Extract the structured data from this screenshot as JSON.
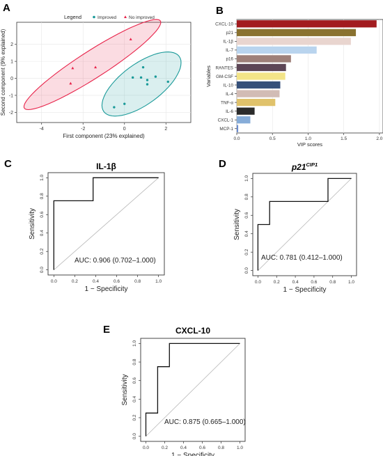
{
  "panel_labels": {
    "a": "A",
    "b": "B",
    "c": "C",
    "d": "D",
    "e": "E"
  },
  "chart_data": [
    {
      "panel": "A",
      "type": "scatter",
      "xlabel": "First component (23% explained)",
      "ylabel": "Second component (9% explained)",
      "xlim": [
        -5.2,
        3.2
      ],
      "ylim": [
        -2.6,
        3.3
      ],
      "xticks": [
        -4,
        -2,
        0,
        2
      ],
      "yticks": [
        -2,
        -1,
        0,
        1,
        2
      ],
      "legend": {
        "title": "Legend",
        "position": "top"
      },
      "series": [
        {
          "name": "Improved",
          "color": "#1a9a99",
          "marker": "circle",
          "x": [
            -0.5,
            0,
            0.4,
            0.8,
            1.1,
            1.1,
            1.5,
            2.1,
            0.9
          ],
          "y": [
            -1.7,
            -1.5,
            0.05,
            0.05,
            -0.1,
            -0.35,
            0.1,
            -0.2,
            0.65
          ]
        },
        {
          "name": "No improved",
          "color": "#e8234a",
          "marker": "triangle",
          "x": [
            -2.6,
            -2.5,
            -1.4,
            0.3
          ],
          "y": [
            -0.3,
            0.6,
            0.65,
            2.3
          ]
        }
      ],
      "ellipse_colors": {
        "Improved": "#1a9a99",
        "No improved": "#e8234a"
      }
    },
    {
      "panel": "B",
      "type": "bar",
      "orientation": "horizontal",
      "xlabel": "VIP scores",
      "ylabel": "Variables",
      "xlim": [
        0,
        2.05
      ],
      "xticks": [
        "0.0",
        "0.5",
        "1.0",
        "1.5",
        "2.0"
      ],
      "categories": [
        "CXCL-10",
        "p21",
        "IL-1β",
        "IL-7",
        "p16",
        "RANTES",
        "GM-CSF",
        "IL-10",
        "IL-4",
        "TNF-α",
        "IL-6",
        "CXCL-1",
        "MCP-1"
      ],
      "values": [
        1.96,
        1.67,
        1.6,
        1.12,
        0.76,
        0.69,
        0.68,
        0.61,
        0.6,
        0.54,
        0.25,
        0.19,
        0.02
      ],
      "colors": [
        "#a21b1f",
        "#8a7230",
        "#e9d5cf",
        "#b9d4ee",
        "#9e8079",
        "#5d4656",
        "#f3e488",
        "#35507a",
        "#d2bcb5",
        "#e0c26b",
        "#2b2b2b",
        "#86acd8",
        "#6a8ccf"
      ]
    },
    {
      "panel": "C",
      "type": "line",
      "title": "IL-1β",
      "title_sup": "",
      "xlabel": "1 − Specificity",
      "ylabel": "Sensitivity",
      "xlim": [
        0,
        1
      ],
      "ylim": [
        0,
        1
      ],
      "xticks": [
        "0.0",
        "0.2",
        "0.4",
        "0.6",
        "0.8",
        "1.0"
      ],
      "yticks": [
        "0.0",
        "0.2",
        "0.4",
        "0.6",
        "0.8",
        "1.0"
      ],
      "x": [
        0,
        0,
        0.375,
        0.375,
        1
      ],
      "y": [
        0,
        0.75,
        0.75,
        1,
        1
      ],
      "annotation": "AUC: 0.906 (0.702–1.000)"
    },
    {
      "panel": "D",
      "type": "line",
      "title": "p21",
      "title_sup": "CIP1",
      "xlabel": "1 − Specificity",
      "ylabel": "Sensitivity",
      "xlim": [
        0,
        1
      ],
      "ylim": [
        0,
        1
      ],
      "xticks": [
        "0.0",
        "0.2",
        "0.4",
        "0.6",
        "0.8",
        "1.0"
      ],
      "yticks": [
        "0.0",
        "0.2",
        "0.4",
        "0.6",
        "0.8",
        "1.0"
      ],
      "x": [
        0,
        0,
        0.125,
        0.125,
        0.75,
        0.75,
        1
      ],
      "y": [
        0,
        0.5,
        0.5,
        0.75,
        0.75,
        1,
        1
      ],
      "annotation": "AUC: 0.781 (0.412–1.000)"
    },
    {
      "panel": "E",
      "type": "line",
      "title": "CXCL-10",
      "title_sup": "",
      "xlabel": "1 − Specificity",
      "ylabel": "Sensitivity",
      "xlim": [
        0,
        1
      ],
      "ylim": [
        0,
        1
      ],
      "xticks": [
        "0.0",
        "0.2",
        "0.4",
        "0.6",
        "0.8",
        "1.0"
      ],
      "yticks": [
        "0.0",
        "0.2",
        "0.4",
        "0.6",
        "0.8",
        "1.0"
      ],
      "x": [
        0,
        0,
        0.125,
        0.125,
        0.25,
        0.25,
        1
      ],
      "y": [
        0,
        0.25,
        0.25,
        0.75,
        0.75,
        1,
        1
      ],
      "annotation": "AUC: 0.875 (0.665–1.000)"
    }
  ]
}
